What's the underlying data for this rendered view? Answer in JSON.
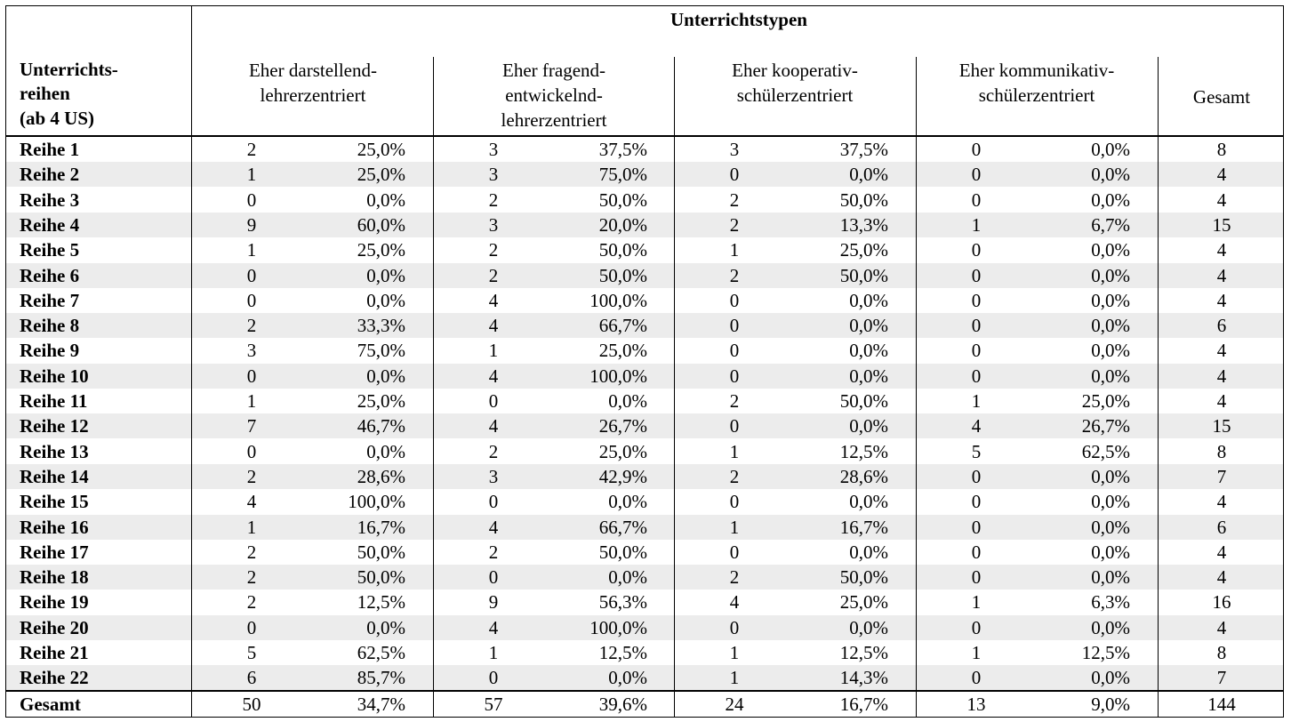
{
  "header": {
    "group_title": "Unterrichtstypen",
    "row_header": [
      "Unterrichts-",
      "reihen",
      "(ab 4 US)"
    ],
    "columns": [
      [
        "Eher darstellend-",
        "lehrerzentriert"
      ],
      [
        "Eher fragend-",
        "entwickelnd-",
        "lehrerzentriert"
      ],
      [
        "Eher kooperativ-",
        "schülerzentriert"
      ],
      [
        "Eher kommunikativ-",
        "schülerzentriert"
      ]
    ],
    "total": "Gesamt"
  },
  "rows": [
    {
      "label": "Reihe 1",
      "cells": [
        "2",
        "25,0%",
        "3",
        "37,5%",
        "3",
        "37,5%",
        "0",
        "0,0%"
      ],
      "total": "8"
    },
    {
      "label": "Reihe 2",
      "cells": [
        "1",
        "25,0%",
        "3",
        "75,0%",
        "0",
        "0,0%",
        "0",
        "0,0%"
      ],
      "total": "4"
    },
    {
      "label": "Reihe 3",
      "cells": [
        "0",
        "0,0%",
        "2",
        "50,0%",
        "2",
        "50,0%",
        "0",
        "0,0%"
      ],
      "total": "4"
    },
    {
      "label": "Reihe 4",
      "cells": [
        "9",
        "60,0%",
        "3",
        "20,0%",
        "2",
        "13,3%",
        "1",
        "6,7%"
      ],
      "total": "15"
    },
    {
      "label": "Reihe 5",
      "cells": [
        "1",
        "25,0%",
        "2",
        "50,0%",
        "1",
        "25,0%",
        "0",
        "0,0%"
      ],
      "total": "4"
    },
    {
      "label": "Reihe 6",
      "cells": [
        "0",
        "0,0%",
        "2",
        "50,0%",
        "2",
        "50,0%",
        "0",
        "0,0%"
      ],
      "total": "4"
    },
    {
      "label": "Reihe 7",
      "cells": [
        "0",
        "0,0%",
        "4",
        "100,0%",
        "0",
        "0,0%",
        "0",
        "0,0%"
      ],
      "total": "4"
    },
    {
      "label": "Reihe 8",
      "cells": [
        "2",
        "33,3%",
        "4",
        "66,7%",
        "0",
        "0,0%",
        "0",
        "0,0%"
      ],
      "total": "6"
    },
    {
      "label": "Reihe 9",
      "cells": [
        "3",
        "75,0%",
        "1",
        "25,0%",
        "0",
        "0,0%",
        "0",
        "0,0%"
      ],
      "total": "4"
    },
    {
      "label": "Reihe 10",
      "cells": [
        "0",
        "0,0%",
        "4",
        "100,0%",
        "0",
        "0,0%",
        "0",
        "0,0%"
      ],
      "total": "4"
    },
    {
      "label": "Reihe 11",
      "cells": [
        "1",
        "25,0%",
        "0",
        "0,0%",
        "2",
        "50,0%",
        "1",
        "25,0%"
      ],
      "total": "4"
    },
    {
      "label": "Reihe 12",
      "cells": [
        "7",
        "46,7%",
        "4",
        "26,7%",
        "0",
        "0,0%",
        "4",
        "26,7%"
      ],
      "total": "15"
    },
    {
      "label": "Reihe 13",
      "cells": [
        "0",
        "0,0%",
        "2",
        "25,0%",
        "1",
        "12,5%",
        "5",
        "62,5%"
      ],
      "total": "8"
    },
    {
      "label": "Reihe 14",
      "cells": [
        "2",
        "28,6%",
        "3",
        "42,9%",
        "2",
        "28,6%",
        "0",
        "0,0%"
      ],
      "total": "7"
    },
    {
      "label": "Reihe 15",
      "cells": [
        "4",
        "100,0%",
        "0",
        "0,0%",
        "0",
        "0,0%",
        "0",
        "0,0%"
      ],
      "total": "4"
    },
    {
      "label": "Reihe 16",
      "cells": [
        "1",
        "16,7%",
        "4",
        "66,7%",
        "1",
        "16,7%",
        "0",
        "0,0%"
      ],
      "total": "6"
    },
    {
      "label": "Reihe 17",
      "cells": [
        "2",
        "50,0%",
        "2",
        "50,0%",
        "0",
        "0,0%",
        "0",
        "0,0%"
      ],
      "total": "4"
    },
    {
      "label": "Reihe 18",
      "cells": [
        "2",
        "50,0%",
        "0",
        "0,0%",
        "2",
        "50,0%",
        "0",
        "0,0%"
      ],
      "total": "4"
    },
    {
      "label": "Reihe 19",
      "cells": [
        "2",
        "12,5%",
        "9",
        "56,3%",
        "4",
        "25,0%",
        "1",
        "6,3%"
      ],
      "total": "16"
    },
    {
      "label": "Reihe 20",
      "cells": [
        "0",
        "0,0%",
        "4",
        "100,0%",
        "0",
        "0,0%",
        "0",
        "0,0%"
      ],
      "total": "4"
    },
    {
      "label": "Reihe 21",
      "cells": [
        "5",
        "62,5%",
        "1",
        "12,5%",
        "1",
        "12,5%",
        "1",
        "12,5%"
      ],
      "total": "8"
    },
    {
      "label": "Reihe 22",
      "cells": [
        "6",
        "85,7%",
        "0",
        "0,0%",
        "1",
        "14,3%",
        "0",
        "0,0%"
      ],
      "total": "7"
    }
  ],
  "summary": {
    "label": "Gesamt",
    "cells": [
      "50",
      "34,7%",
      "57",
      "39,6%",
      "24",
      "16,7%",
      "13",
      "9,0%"
    ],
    "total": "144"
  }
}
